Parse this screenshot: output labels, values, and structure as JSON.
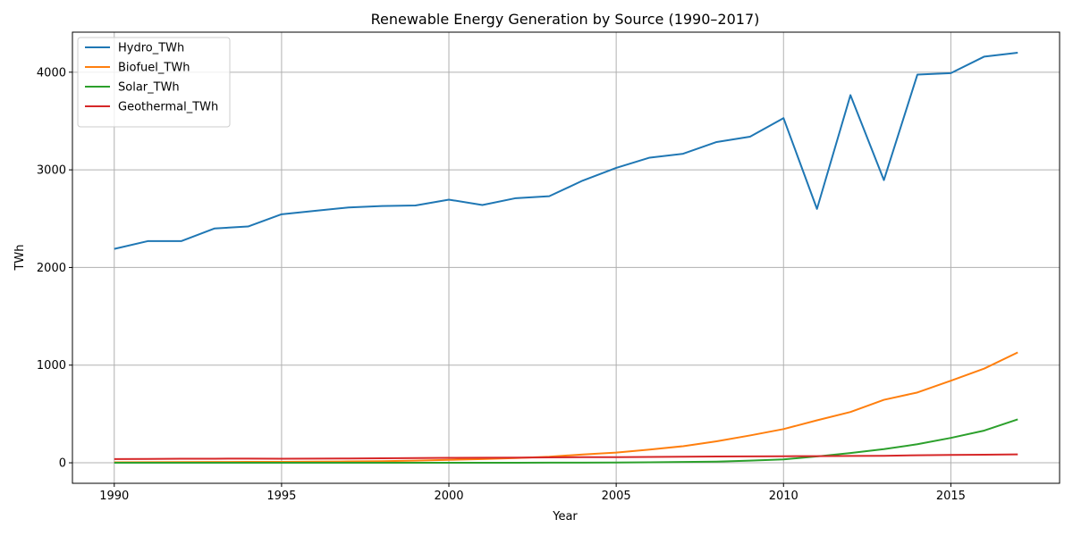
{
  "chart_data": {
    "type": "line",
    "title": "Renewable Energy Generation by Source (1990–2017)",
    "xlabel": "Year",
    "ylabel": "TWh",
    "xlim": [
      1988.75,
      2018.25
    ],
    "ylim": [
      -210,
      4410
    ],
    "x_ticks": [
      1990,
      1995,
      2000,
      2005,
      2010,
      2015
    ],
    "y_ticks": [
      0,
      1000,
      2000,
      3000,
      4000
    ],
    "grid": true,
    "legend_position": "upper-left",
    "x": [
      1990,
      1991,
      1992,
      1993,
      1994,
      1995,
      1996,
      1997,
      1998,
      1999,
      2000,
      2001,
      2002,
      2003,
      2004,
      2005,
      2006,
      2007,
      2008,
      2009,
      2010,
      2011,
      2012,
      2013,
      2014,
      2015,
      2016,
      2017
    ],
    "series": [
      {
        "name": "Hydro_TWh",
        "color": "#1f77b4",
        "values": [
          2190,
          2270,
          2270,
          2400,
          2420,
          2545,
          2580,
          2615,
          2630,
          2635,
          2695,
          2640,
          2710,
          2730,
          2890,
          3020,
          3125,
          3165,
          3285,
          3340,
          3530,
          2600,
          3765,
          2895,
          3975,
          3990,
          4160,
          4200
        ]
      },
      {
        "name": "Biofuel_TWh",
        "color": "#ff7f0e",
        "values": [
          5,
          6,
          7,
          8,
          9,
          10,
          12,
          14,
          17,
          22,
          30,
          38,
          48,
          62,
          85,
          105,
          135,
          170,
          220,
          280,
          345,
          435,
          520,
          645,
          720,
          840,
          965,
          1130
        ]
      },
      {
        "name": "Solar_TWh",
        "color": "#2ca02c",
        "values": [
          0,
          0,
          0,
          0,
          0,
          0,
          0,
          0,
          0,
          0,
          1,
          1,
          1,
          2,
          2,
          3,
          5,
          8,
          12,
          22,
          35,
          65,
          100,
          140,
          190,
          255,
          330,
          445
        ]
      },
      {
        "name": "Geothermal_TWh",
        "color": "#d62728",
        "values": [
          38,
          39,
          41,
          42,
          43,
          42,
          43,
          44,
          46,
          48,
          51,
          52,
          53,
          55,
          57,
          58,
          60,
          62,
          64,
          66,
          67,
          68,
          70,
          71,
          77,
          80,
          83,
          86
        ]
      }
    ]
  }
}
